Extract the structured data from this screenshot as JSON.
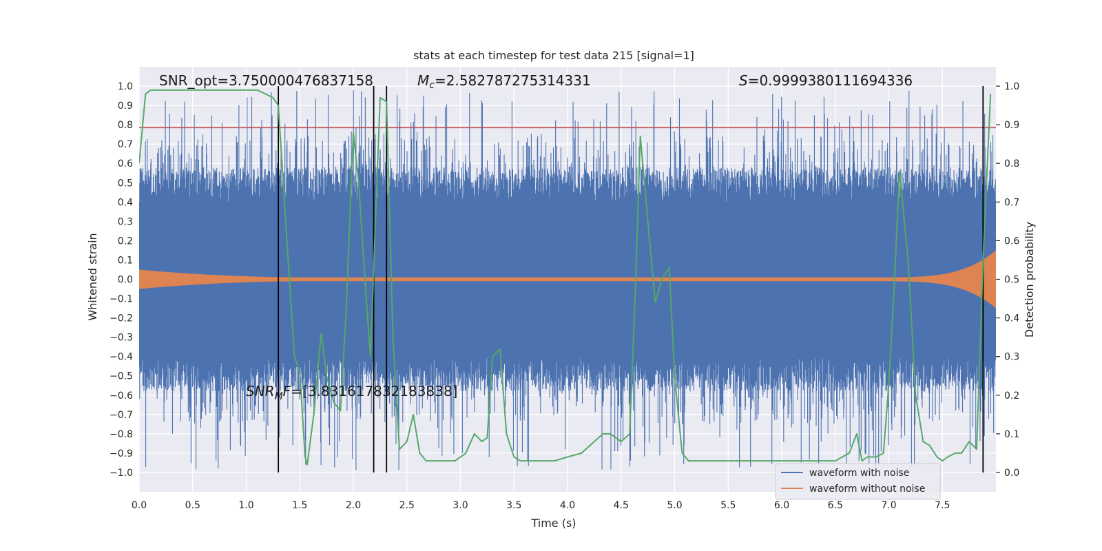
{
  "chart_data": {
    "type": "line",
    "title": "stats at each timestep for test data 215 [signal=1]",
    "xlabel": "Time (s)",
    "ylabel": "Whitened strain",
    "y2label": "Detection probability",
    "xlim": [
      0,
      8
    ],
    "ylim": [
      -1.1,
      1.1
    ],
    "y2lim": [
      -0.05,
      1.05
    ],
    "x_ticks": [
      "0.0",
      "0.5",
      "1.0",
      "1.5",
      "2.0",
      "2.5",
      "3.0",
      "3.5",
      "4.0",
      "4.5",
      "5.0",
      "5.5",
      "6.0",
      "6.5",
      "7.0",
      "7.5"
    ],
    "y_ticks": [
      "1.0",
      "0.9",
      "0.8",
      "0.7",
      "0.6",
      "0.5",
      "0.4",
      "0.3",
      "0.2",
      "0.1",
      "0.0",
      "−0.1",
      "−0.2",
      "−0.3",
      "−0.4",
      "−0.5",
      "−0.6",
      "−0.7",
      "−0.8",
      "−0.9",
      "−1.0"
    ],
    "y2_ticks": [
      "1.0",
      "0.9",
      "0.8",
      "0.7",
      "0.6",
      "0.5",
      "0.4",
      "0.3",
      "0.2",
      "0.1",
      "0.0"
    ],
    "annotations": {
      "snr_opt": "SNR_opt=3.750000476837158",
      "mc_symbol": "M",
      "mc_sub": "c",
      "mc_value": "=2.582787275314331",
      "s_symbol": "S",
      "s_value": "=0.9999380111694336",
      "snr_mf_symbol": "SNR",
      "snr_mf_sub": "M",
      "snr_mf_symbol2": "F",
      "snr_mf_value": "=[3.831617832183838]"
    },
    "threshold_line": {
      "y": 0.785,
      "color": "#c44e52"
    },
    "vertical_lines_x": [
      1.3,
      2.19,
      2.31,
      7.88
    ],
    "series": [
      {
        "name": "waveform with noise",
        "color": "#4c72b0",
        "envelope_base": 0.4,
        "envelope_peak": 0.98,
        "envelope_min": -0.99
      },
      {
        "name": "waveform without noise",
        "color": "#dd8452",
        "amplitude_start": 0.05,
        "amplitude_mid": 0.01,
        "amplitude_end": 0.15
      },
      {
        "name": "Detection probability",
        "color": "#55a868",
        "x": [
          0,
          0.06,
          0.11,
          0.2,
          0.3,
          0.4,
          0.5,
          0.6,
          0.7,
          0.8,
          0.9,
          1.0,
          1.1,
          1.18,
          1.25,
          1.3,
          1.38,
          1.45,
          1.5,
          1.55,
          1.57,
          1.63,
          1.7,
          1.75,
          1.82,
          1.88,
          1.93,
          2.0,
          2.05,
          2.12,
          2.16,
          2.2,
          2.25,
          2.31,
          2.37,
          2.43,
          2.5,
          2.56,
          2.62,
          2.68,
          2.75,
          2.85,
          2.95,
          3.05,
          3.13,
          3.2,
          3.25,
          3.3,
          3.37,
          3.43,
          3.5,
          3.56,
          3.63,
          3.75,
          3.88,
          4.0,
          4.13,
          4.25,
          4.33,
          4.4,
          4.5,
          4.58,
          4.63,
          4.68,
          4.75,
          4.82,
          4.88,
          4.95,
          5.0,
          5.07,
          5.13,
          5.25,
          5.5,
          5.75,
          6.0,
          6.25,
          6.5,
          6.63,
          6.7,
          6.75,
          6.8,
          6.88,
          6.95,
          7.0,
          7.05,
          7.1,
          7.18,
          7.25,
          7.32,
          7.38,
          7.45,
          7.5,
          7.55,
          7.62,
          7.68,
          7.75,
          7.82,
          7.88,
          7.95
        ],
        "y": [
          0.8,
          0.98,
          0.99,
          0.99,
          0.99,
          0.99,
          0.99,
          0.99,
          0.99,
          0.99,
          0.99,
          0.99,
          0.99,
          0.98,
          0.97,
          0.95,
          0.6,
          0.3,
          0.26,
          0.04,
          0.02,
          0.15,
          0.36,
          0.25,
          0.18,
          0.16,
          0.4,
          0.88,
          0.75,
          0.45,
          0.3,
          0.6,
          0.97,
          0.96,
          0.35,
          0.06,
          0.08,
          0.15,
          0.05,
          0.03,
          0.03,
          0.03,
          0.03,
          0.05,
          0.1,
          0.08,
          0.09,
          0.3,
          0.32,
          0.1,
          0.04,
          0.03,
          0.03,
          0.03,
          0.03,
          0.04,
          0.05,
          0.08,
          0.1,
          0.1,
          0.08,
          0.1,
          0.45,
          0.87,
          0.65,
          0.44,
          0.5,
          0.53,
          0.25,
          0.05,
          0.03,
          0.03,
          0.03,
          0.03,
          0.03,
          0.03,
          0.03,
          0.05,
          0.1,
          0.03,
          0.04,
          0.04,
          0.05,
          0.23,
          0.48,
          0.78,
          0.55,
          0.2,
          0.08,
          0.07,
          0.04,
          0.03,
          0.04,
          0.05,
          0.05,
          0.08,
          0.06,
          0.55,
          0.98
        ]
      }
    ],
    "legend": {
      "placement": "lower-right",
      "entries": [
        "waveform with noise",
        "waveform without noise"
      ]
    },
    "grid": true,
    "colors": {
      "plot_bg": "#eaeaf2",
      "grid": "#ffffff",
      "vline": "#000000"
    }
  }
}
